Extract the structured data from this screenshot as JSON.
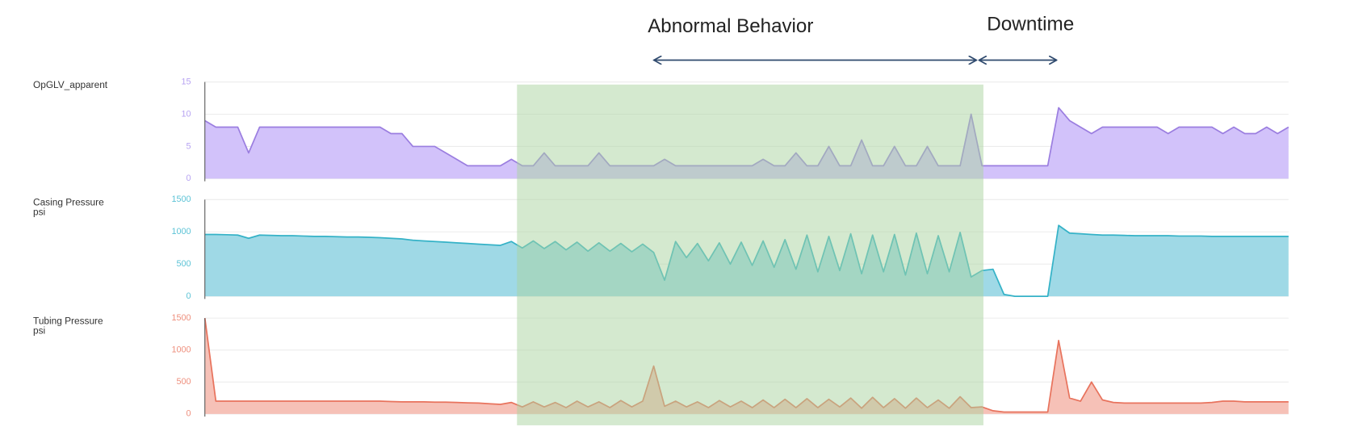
{
  "annotations": [
    {
      "text": "Abnormal Behavior"
    },
    {
      "text": "Downtime"
    }
  ],
  "chart_data": [
    {
      "type": "area",
      "title": "OpGLV_apparent",
      "color": "#9b7ee0",
      "fill": "#d2c2fa",
      "tick_color": "#b7a3f2",
      "ylim": [
        0,
        15
      ],
      "yticks": [
        0,
        5,
        10,
        15
      ],
      "grid": true,
      "values": [
        9,
        8,
        8,
        8,
        4,
        8,
        8,
        8,
        8,
        8,
        8,
        8,
        8,
        8,
        8,
        8,
        8,
        7,
        7,
        5,
        5,
        5,
        4,
        3,
        2,
        2,
        2,
        2,
        3,
        2,
        2,
        4,
        2,
        2,
        2,
        2,
        4,
        2,
        2,
        2,
        2,
        2,
        3,
        2,
        2,
        2,
        2,
        2,
        2,
        2,
        2,
        3,
        2,
        2,
        4,
        2,
        2,
        5,
        2,
        2,
        6,
        2,
        2,
        5,
        2,
        2,
        5,
        2,
        2,
        2,
        10,
        2,
        2,
        2,
        2,
        2,
        2,
        2,
        11,
        9,
        8,
        7,
        8,
        8,
        8,
        8,
        8,
        8,
        7,
        8,
        8,
        8,
        8,
        7,
        8,
        7,
        7,
        8,
        7,
        8
      ]
    },
    {
      "type": "area",
      "title": "Casing Pressure",
      "units": "psi",
      "color": "#35b2c7",
      "fill": "#9fd9e6",
      "tick_color": "#5cc3d6",
      "ylim": [
        0,
        1500
      ],
      "yticks": [
        0,
        500,
        1000,
        1500
      ],
      "grid": true,
      "values": [
        960,
        960,
        955,
        950,
        900,
        950,
        945,
        940,
        940,
        935,
        930,
        930,
        925,
        920,
        920,
        915,
        910,
        900,
        890,
        870,
        860,
        850,
        840,
        830,
        820,
        810,
        800,
        790,
        850,
        750,
        860,
        740,
        850,
        720,
        840,
        700,
        830,
        700,
        820,
        690,
        810,
        680,
        250,
        850,
        600,
        820,
        550,
        830,
        500,
        840,
        480,
        860,
        450,
        880,
        420,
        950,
        380,
        930,
        400,
        970,
        350,
        950,
        380,
        960,
        330,
        980,
        350,
        940,
        380,
        990,
        300,
        400,
        420,
        30,
        0,
        0,
        0,
        0,
        1100,
        980,
        970,
        960,
        950,
        950,
        945,
        940,
        940,
        940,
        940,
        935,
        935,
        935,
        930,
        930,
        930,
        930,
        930,
        930,
        930,
        930
      ]
    },
    {
      "type": "area",
      "title": "Tubing Pressure",
      "units": "psi",
      "color": "#e8735d",
      "fill": "#f6c1b7",
      "tick_color": "#ee8f7d",
      "ylim": [
        0,
        1500
      ],
      "yticks": [
        0,
        500,
        1000,
        1500
      ],
      "grid": true,
      "values": [
        1500,
        200,
        200,
        200,
        200,
        200,
        200,
        200,
        200,
        200,
        200,
        200,
        200,
        200,
        200,
        200,
        200,
        195,
        190,
        190,
        190,
        185,
        185,
        180,
        175,
        170,
        160,
        150,
        180,
        110,
        190,
        110,
        180,
        100,
        200,
        110,
        190,
        100,
        210,
        110,
        200,
        750,
        120,
        200,
        110,
        190,
        100,
        210,
        110,
        200,
        100,
        220,
        100,
        230,
        100,
        240,
        100,
        230,
        110,
        250,
        90,
        260,
        100,
        240,
        90,
        250,
        100,
        220,
        90,
        270,
        100,
        110,
        50,
        30,
        30,
        30,
        30,
        30,
        1150,
        250,
        200,
        500,
        220,
        180,
        170,
        170,
        170,
        170,
        170,
        170,
        170,
        170,
        180,
        200,
        200,
        190,
        190,
        190,
        190,
        190
      ]
    }
  ]
}
